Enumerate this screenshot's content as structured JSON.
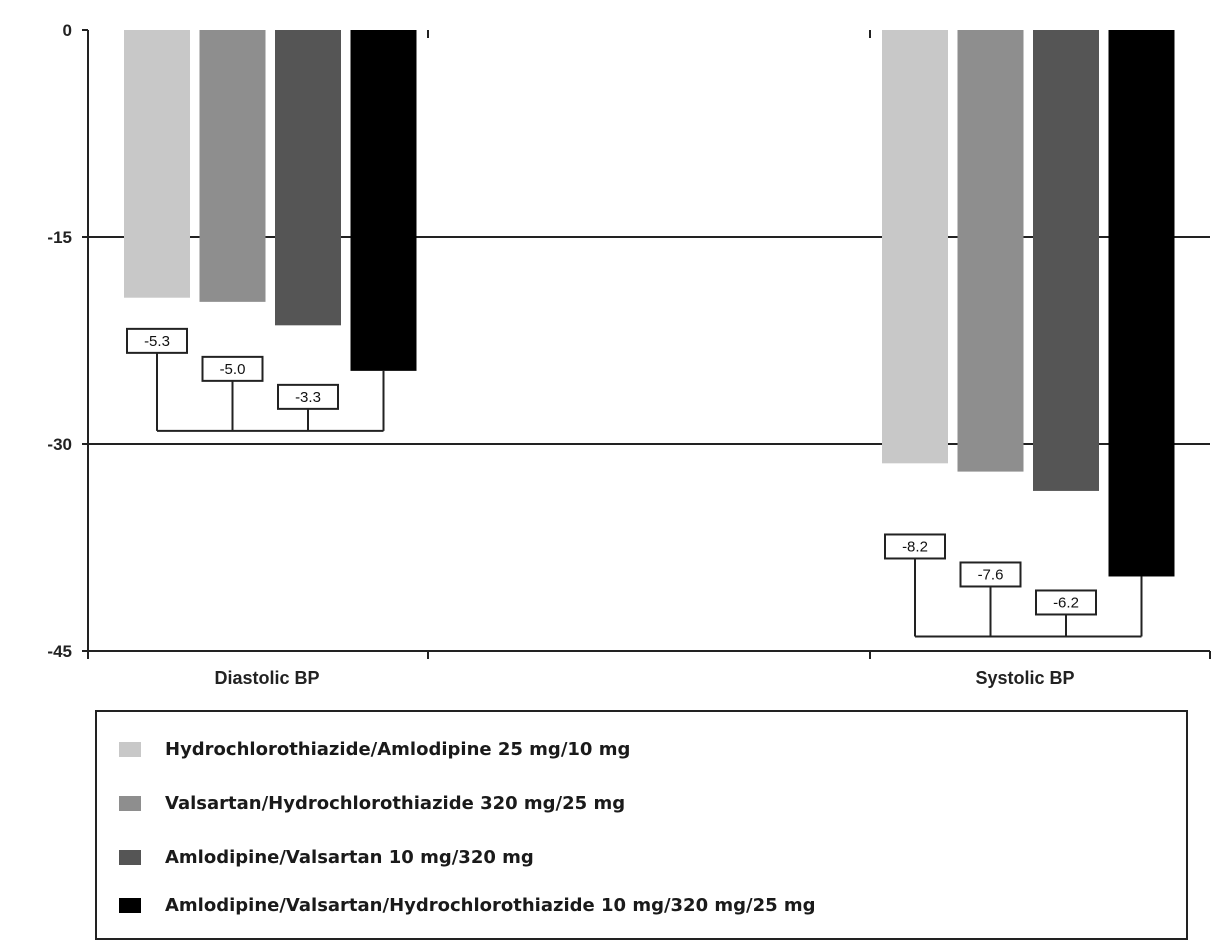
{
  "chart_data": {
    "type": "bar",
    "title": "",
    "xlabel": "",
    "ylabel": "",
    "ylim": [
      -45,
      0
    ],
    "yticks": [
      0,
      -15,
      -30,
      -45
    ],
    "grid": true,
    "legend_position": "bottom",
    "categories": [
      "Diastolic BP",
      "Systolic BP"
    ],
    "series": [
      {
        "name": "Hydrochlorothiazide/Amlodipine 25 mg/10 mg",
        "color": "#c8c8c8",
        "values": [
          -19.4,
          -31.4
        ]
      },
      {
        "name": "Valsartan/Hydrochlorothiazide 320 mg/25 mg",
        "color": "#8e8e8e",
        "values": [
          -19.7,
          -32.0
        ]
      },
      {
        "name": "Amlodipine/Valsartan 10 mg/320 mg",
        "color": "#555555",
        "values": [
          -21.4,
          -33.4
        ]
      },
      {
        "name": "Amlodipine/Valsartan/Hydrochlorothiazide 10 mg/320 mg/25 mg",
        "color": "#000000",
        "values": [
          -24.7,
          -39.6
        ]
      }
    ],
    "annotations": [
      {
        "category": "Diastolic BP",
        "differences": [
          "-5.3",
          "-5.0",
          "-3.3"
        ]
      },
      {
        "category": "Systolic BP",
        "differences": [
          "-8.2",
          "-7.6",
          "-6.2"
        ]
      }
    ]
  }
}
